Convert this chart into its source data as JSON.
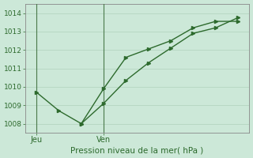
{
  "line1_x": [
    0,
    1,
    2,
    3,
    4,
    5,
    6,
    7,
    8,
    9
  ],
  "line1_y": [
    1009.7,
    1008.7,
    1008.0,
    1009.9,
    1011.6,
    1012.05,
    1012.5,
    1013.2,
    1013.55,
    1013.55
  ],
  "line2_x": [
    2,
    3,
    4,
    5,
    6,
    7,
    8,
    9
  ],
  "line2_y": [
    1008.0,
    1009.1,
    1010.35,
    1011.3,
    1012.1,
    1012.9,
    1013.2,
    1013.75
  ],
  "ylim": [
    1007.5,
    1014.5
  ],
  "xlim": [
    -0.5,
    9.5
  ],
  "yticks": [
    1008,
    1009,
    1010,
    1011,
    1012,
    1013,
    1014
  ],
  "line_color": "#2d6a2d",
  "bg_color": "#cce8d8",
  "grid_color": "#b8d8c4",
  "xlabel": "Pression niveau de la mer( hPa )",
  "xlabel_color": "#2d6a2d",
  "day_ticks": [
    0,
    3
  ],
  "day_labels": [
    "Jeu",
    "Ven"
  ],
  "vline_x": [
    0,
    3
  ],
  "vline_color": "#4a7a4a",
  "spine_color": "#888888",
  "marker": ">"
}
